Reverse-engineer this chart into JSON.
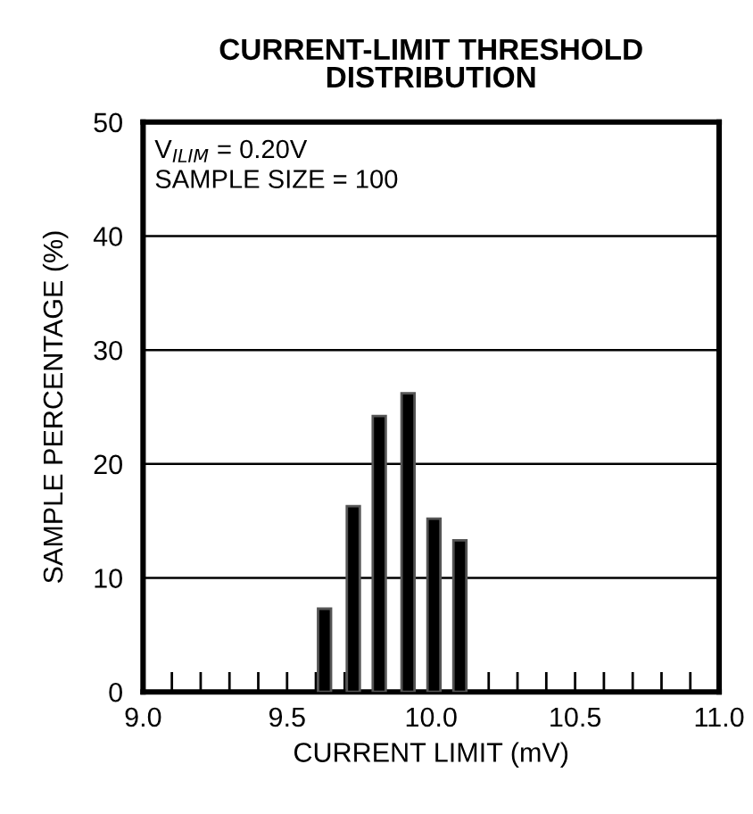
{
  "chart_data": {
    "type": "bar",
    "title": "CURRENT-LIMIT THRESHOLD\nDISTRIBUTION",
    "xlabel": "CURRENT LIMIT (mV)",
    "ylabel": "SAMPLE PERCENTAGE (%)",
    "annotations": [
      "V$_{ILIM}$ = 0.20V\nSAMPLE SIZE = 100"
    ],
    "x": [
      9.63,
      9.73,
      9.82,
      9.92,
      10.01,
      10.1
    ],
    "values": [
      7.3,
      16.3,
      24.2,
      26.2,
      15.2,
      13.3
    ],
    "color": "#000000",
    "xlim": [
      9,
      11
    ],
    "ylim": [
      0,
      50
    ],
    "xticks": [
      {
        "value": 9,
        "label": "9.0"
      },
      {
        "value": 9.1,
        "label": null
      },
      {
        "value": 9.2,
        "label": null
      },
      {
        "value": 9.3,
        "label": null
      },
      {
        "value": 9.4,
        "label": null
      },
      9.5,
      {
        "value": 9.6,
        "label": null
      },
      {
        "value": 9.7,
        "label": null
      },
      {
        "value": 9.8,
        "label": null
      },
      {
        "value": 9.9,
        "label": null
      },
      {
        "value": 10,
        "label": "10.0"
      },
      {
        "value": 10.1,
        "label": null
      },
      {
        "value": 10.2,
        "label": null
      },
      {
        "value": 10.3,
        "label": null
      },
      {
        "value": 10.4,
        "label": null
      },
      10.5,
      {
        "value": 10.6,
        "label": null
      },
      {
        "value": 10.7,
        "label": null
      },
      {
        "value": 10.8,
        "label": null
      },
      {
        "value": 10.9,
        "label": null
      },
      {
        "value": 11,
        "label": "11.0"
      }
    ],
    "yticks": [
      0,
      10,
      20,
      30,
      40,
      50
    ],
    "grid": "y"
  }
}
